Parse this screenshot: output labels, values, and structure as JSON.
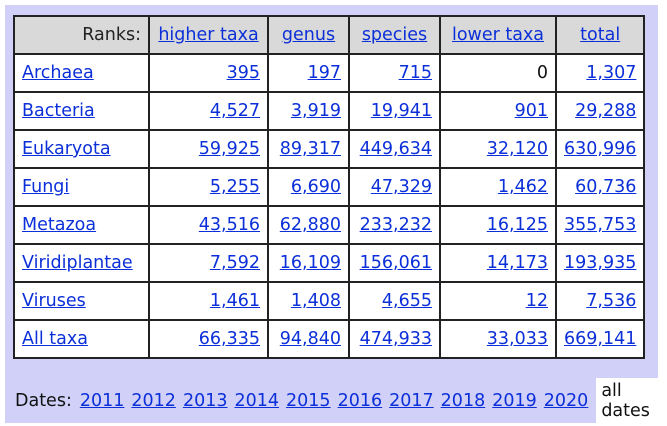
{
  "header": {
    "ranks_label": "Ranks:",
    "columns": [
      "higher taxa",
      "genus",
      "species",
      "lower taxa",
      "total"
    ]
  },
  "rows": [
    {
      "name": "Archaea",
      "values": [
        "395",
        "197",
        "715",
        "0",
        "1,307"
      ]
    },
    {
      "name": "Bacteria",
      "values": [
        "4,527",
        "3,919",
        "19,941",
        "901",
        "29,288"
      ]
    },
    {
      "name": "Eukaryota",
      "values": [
        "59,925",
        "89,317",
        "449,634",
        "32,120",
        "630,996"
      ]
    },
    {
      "name": "Fungi",
      "values": [
        "5,255",
        "6,690",
        "47,329",
        "1,462",
        "60,736"
      ]
    },
    {
      "name": "Metazoa",
      "values": [
        "43,516",
        "62,880",
        "233,232",
        "16,125",
        "355,753"
      ]
    },
    {
      "name": "Viridiplantae",
      "values": [
        "7,592",
        "16,109",
        "156,061",
        "14,173",
        "193,935"
      ]
    },
    {
      "name": "Viruses",
      "values": [
        "1,461",
        "1,408",
        "4,655",
        "12",
        "7,536"
      ]
    },
    {
      "name": "All taxa",
      "values": [
        "66,335",
        "94,840",
        "474,933",
        "33,033",
        "669,141"
      ]
    }
  ],
  "dates": {
    "label": "Dates:",
    "years": [
      "2011",
      "2012",
      "2013",
      "2014",
      "2015",
      "2016",
      "2017",
      "2018",
      "2019",
      "2020"
    ],
    "selected": "all dates"
  },
  "colors": {
    "link": "#0b2fd8",
    "frame": "#d0d0f8",
    "header_bg": "#d9d9d9"
  }
}
